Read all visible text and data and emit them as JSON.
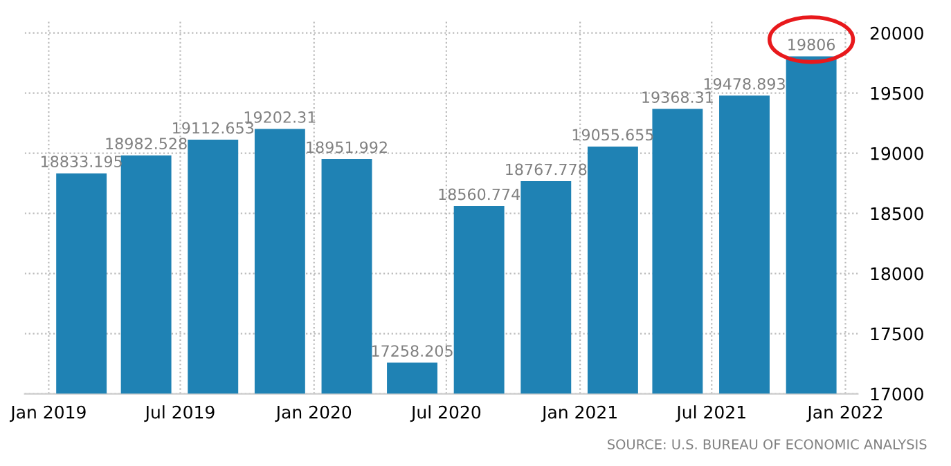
{
  "chart_data": {
    "type": "bar",
    "x": [
      "2019-02-15",
      "2019-05-15",
      "2019-08-15",
      "2019-11-15",
      "2020-02-15",
      "2020-05-15",
      "2020-08-15",
      "2020-11-15",
      "2021-02-15",
      "2021-05-15",
      "2021-08-15",
      "2021-11-15"
    ],
    "values": [
      18833.195,
      18982.528,
      19112.653,
      19202.31,
      18951.992,
      17258.205,
      18560.774,
      18767.778,
      19055.655,
      19368.31,
      19478.893,
      19806
    ],
    "color": "#1f82b4",
    "data_labels": true,
    "xlim": [
      "2018-11-29",
      "2022-01-18"
    ],
    "xticks": [
      {
        "value": "2019-01",
        "label": "Jan 2019"
      },
      {
        "value": "2019-07",
        "label": "Jul 2019"
      },
      {
        "value": "2020-01",
        "label": "Jan 2020"
      },
      {
        "value": "2020-07",
        "label": "Jul 2020"
      },
      {
        "value": "2021-01",
        "label": "Jan 2021"
      },
      {
        "value": "2021-07",
        "label": "Jul 2021"
      },
      {
        "value": "2022-01",
        "label": "Jan 2022"
      }
    ],
    "ylim": [
      17000,
      20100
    ],
    "yticks": [
      17000,
      17500,
      18000,
      18500,
      19000,
      19500,
      20000
    ],
    "grid": true,
    "annotations": [
      "SOURCE: U.S. BUREAU OF ECONOMIC ANALYSIS"
    ]
  }
}
